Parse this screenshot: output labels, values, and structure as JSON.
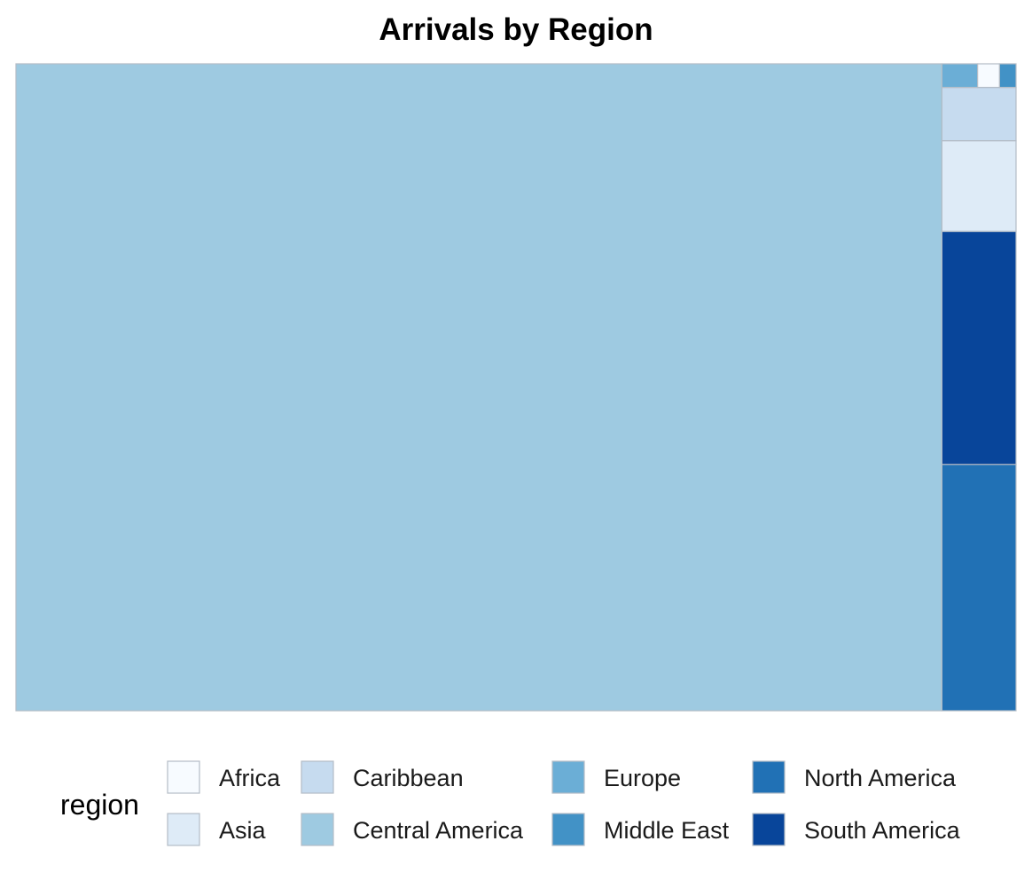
{
  "chart_data": {
    "type": "treemap",
    "title": "Arrivals by Region",
    "legend_title": "region",
    "legend_position": "bottom",
    "colors": {
      "Africa": "#f7fbff",
      "Asia": "#deebf7",
      "Caribbean": "#c6dbef",
      "Central America": "#9ecae1",
      "Europe": "#6baed6",
      "Middle East": "#4292c6",
      "North America": "#2171b5",
      "South America": "#08459a"
    },
    "legend_order": [
      "Africa",
      "Asia",
      "Caribbean",
      "Central America",
      "Europe",
      "Middle East",
      "North America",
      "South America"
    ],
    "items": [
      {
        "region": "Central America",
        "share": 0.9256
      },
      {
        "region": "North America",
        "share": 0.0282
      },
      {
        "region": "South America",
        "share": 0.0267
      },
      {
        "region": "Asia",
        "share": 0.0104
      },
      {
        "region": "Caribbean",
        "share": 0.0061
      },
      {
        "region": "Europe",
        "share": 0.0013
      },
      {
        "region": "Africa",
        "share": 0.0008
      },
      {
        "region": "Middle East",
        "share": 0.0006
      }
    ]
  }
}
